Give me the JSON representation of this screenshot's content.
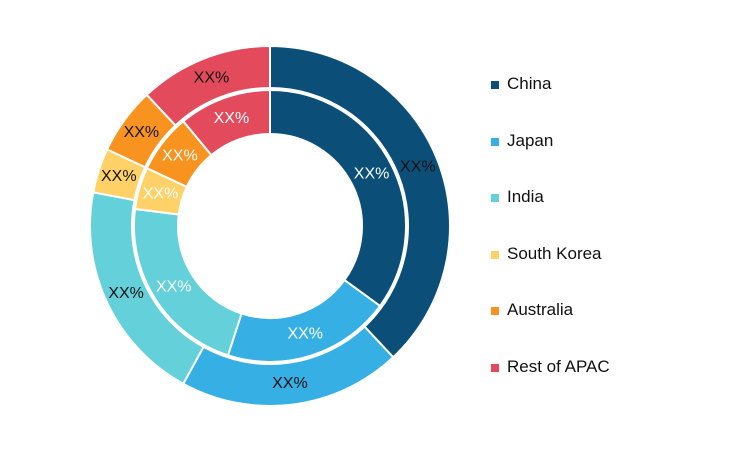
{
  "chart_data": {
    "type": "pie",
    "legend_position": "right",
    "categories": [
      "China",
      "Japan",
      "India",
      "South Korea",
      "Australia",
      "Rest of APAC"
    ],
    "colors": [
      "#0B4F79",
      "#35AFE4",
      "#63D0DA",
      "#FFD166",
      "#F7931E",
      "#E34A5B"
    ],
    "series": [
      {
        "ring": "outer",
        "values": [
          38,
          20,
          20,
          4,
          6,
          12
        ],
        "labels": [
          "XX%",
          "XX%",
          "XX%",
          "XX%",
          "XX%",
          "XX%"
        ]
      },
      {
        "ring": "inner",
        "values": [
          35,
          20,
          22,
          5,
          7,
          11
        ],
        "labels": [
          "XX%",
          "XX%",
          "XX%",
          "XX%",
          "XX%",
          "XX%"
        ]
      }
    ]
  }
}
